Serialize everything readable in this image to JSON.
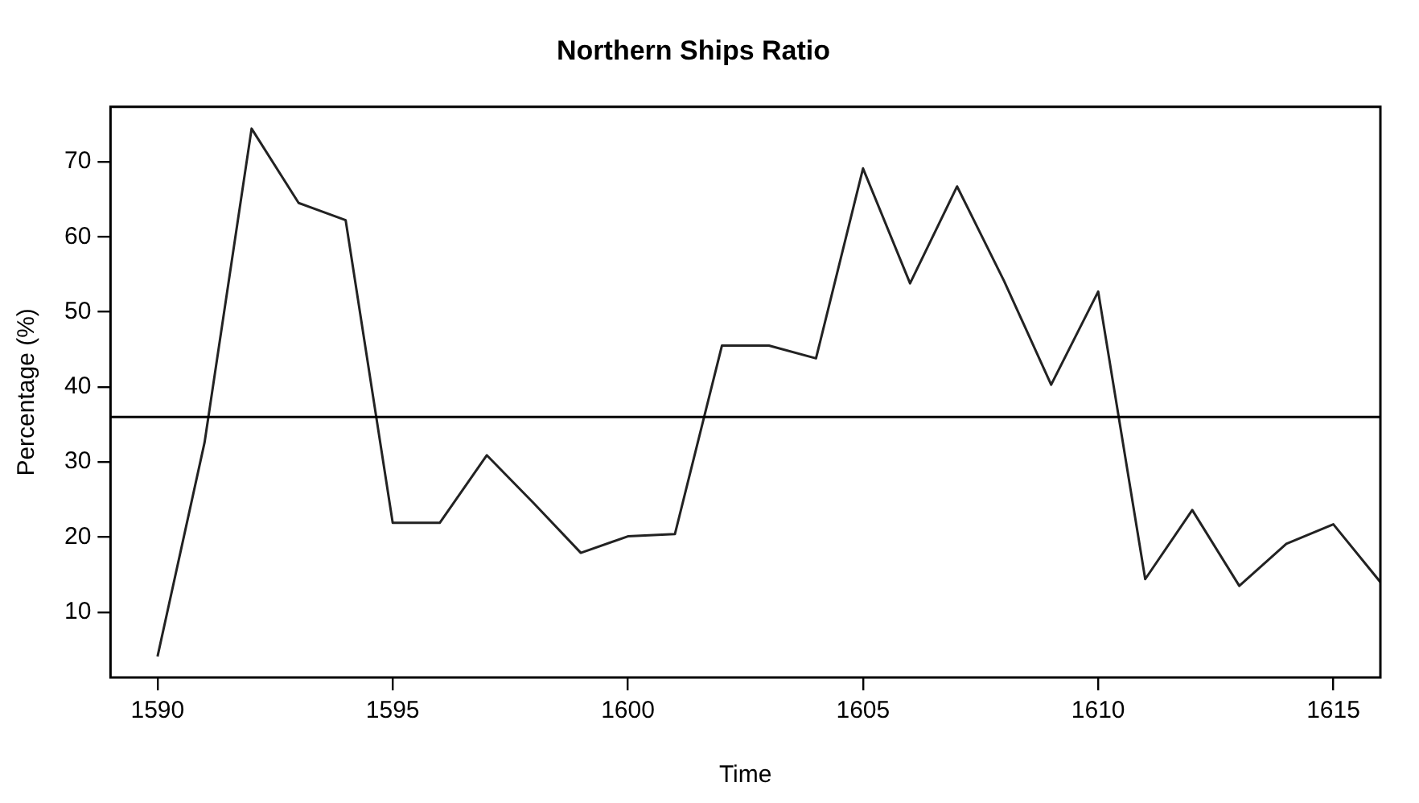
{
  "chart_data": {
    "type": "line",
    "title": "Northern Ships Ratio",
    "xlabel": "Time",
    "ylabel": "Percentage (%)",
    "x": [
      1590,
      1591,
      1592,
      1593,
      1594,
      1595,
      1596,
      1597,
      1598,
      1599,
      1600,
      1601,
      1602,
      1603,
      1604,
      1605,
      1606,
      1607,
      1608,
      1609,
      1610,
      1611,
      1612,
      1613,
      1614,
      1615,
      1616
    ],
    "series": [
      {
        "color": "#222222",
        "values": [
          4.1,
          32.6,
          74.4,
          64.5,
          62.2,
          21.9,
          21.9,
          30.9,
          24.5,
          17.9,
          20.1,
          20.4,
          45.5,
          45.5,
          43.8,
          69.1,
          53.8,
          66.7,
          54.1,
          40.3,
          52.7,
          14.4,
          23.6,
          13.5,
          19.1,
          21.7,
          14.0
        ]
      }
    ],
    "xlim": [
      1589,
      1616
    ],
    "xticks": [
      1590,
      1595,
      1600,
      1605,
      1610,
      1615
    ],
    "ylim": [
      1.3,
      77.3
    ],
    "yticks": [
      10,
      20,
      30,
      40,
      50,
      60,
      70
    ],
    "ref_lines": [
      {
        "axis": "y",
        "value": 36,
        "color": "#000000"
      }
    ],
    "grid": false,
    "legend": false,
    "marker": "none",
    "line_style": "solid"
  }
}
